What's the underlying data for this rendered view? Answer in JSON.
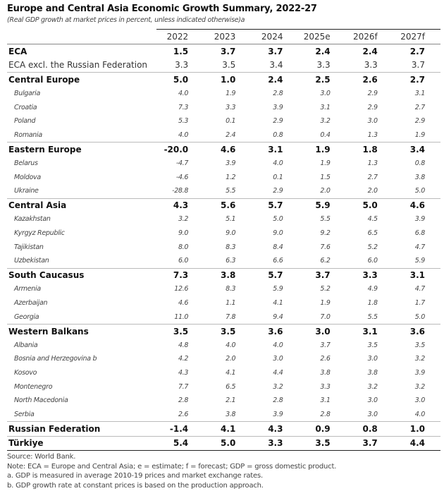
{
  "title": "Europe and Central Asia Economic Growth Summary, 2022-27",
  "subtitle": "(Real GDP growth at market prices in percent, unless indicated otherwise)a",
  "columns": [
    "2022",
    "2023",
    "2024",
    "2025e",
    "2026f",
    "2027f"
  ],
  "rows": [
    {
      "name": "ECA",
      "bold": true,
      "values": [
        "1.5",
        "3.7",
        "3.7",
        "2.4",
        "2.4",
        "2.7"
      ]
    },
    {
      "name": "ECA excl. the Russian Federation",
      "bold": false,
      "flat": true,
      "values": [
        "3.3",
        "3.5",
        "3.4",
        "3.3",
        "3.3",
        "3.7"
      ]
    },
    {
      "name": "Central Europe",
      "bold": true,
      "values": [
        "5.0",
        "1.0",
        "2.4",
        "2.5",
        "2.6",
        "2.7"
      ]
    },
    {
      "name": "Bulgaria",
      "values": [
        "4.0",
        "1.9",
        "2.8",
        "3.0",
        "2.9",
        "3.1"
      ]
    },
    {
      "name": "Croatia",
      "values": [
        "7.3",
        "3.3",
        "3.9",
        "3.1",
        "2.9",
        "2.7"
      ]
    },
    {
      "name": "Poland",
      "values": [
        "5.3",
        "0.1",
        "2.9",
        "3.2",
        "3.0",
        "2.9"
      ]
    },
    {
      "name": "Romania",
      "values": [
        "4.0",
        "2.4",
        "0.8",
        "0.4",
        "1.3",
        "1.9"
      ]
    },
    {
      "name": "Eastern Europe",
      "bold": true,
      "values": [
        "-20.0",
        "4.6",
        "3.1",
        "1.9",
        "1.8",
        "3.4"
      ]
    },
    {
      "name": "Belarus",
      "values": [
        "-4.7",
        "3.9",
        "4.0",
        "1.9",
        "1.3",
        "0.8"
      ]
    },
    {
      "name": "Moldova",
      "values": [
        "-4.6",
        "1.2",
        "0.1",
        "1.5",
        "2.7",
        "3.8"
      ]
    },
    {
      "name": "Ukraine",
      "values": [
        "-28.8",
        "5.5",
        "2.9",
        "2.0",
        "2.0",
        "5.0"
      ]
    },
    {
      "name": "Central Asia",
      "bold": true,
      "values": [
        "4.3",
        "5.6",
        "5.7",
        "5.9",
        "5.0",
        "4.6"
      ]
    },
    {
      "name": "Kazakhstan",
      "values": [
        "3.2",
        "5.1",
        "5.0",
        "5.5",
        "4.5",
        "3.9"
      ]
    },
    {
      "name": "Kyrgyz Republic",
      "values": [
        "9.0",
        "9.0",
        "9.0",
        "9.2",
        "6.5",
        "6.8"
      ]
    },
    {
      "name": "Tajikistan",
      "values": [
        "8.0",
        "8.3",
        "8.4",
        "7.6",
        "5.2",
        "4.7"
      ]
    },
    {
      "name": "Uzbekistan",
      "values": [
        "6.0",
        "6.3",
        "6.6",
        "6.2",
        "6.0",
        "5.9"
      ]
    },
    {
      "name": "South Caucasus",
      "bold": true,
      "values": [
        "7.3",
        "3.8",
        "5.7",
        "3.7",
        "3.3",
        "3.1"
      ]
    },
    {
      "name": "Armenia",
      "values": [
        "12.6",
        "8.3",
        "5.9",
        "5.2",
        "4.9",
        "4.7"
      ]
    },
    {
      "name": "Azerbaijan",
      "values": [
        "4.6",
        "1.1",
        "4.1",
        "1.9",
        "1.8",
        "1.7"
      ]
    },
    {
      "name": "Georgia",
      "values": [
        "11.0",
        "7.8",
        "9.4",
        "7.0",
        "5.5",
        "5.0"
      ]
    },
    {
      "name": "Western Balkans",
      "bold": true,
      "values": [
        "3.5",
        "3.5",
        "3.6",
        "3.0",
        "3.1",
        "3.6"
      ]
    },
    {
      "name": "Albania",
      "values": [
        "4.8",
        "4.0",
        "4.0",
        "3.7",
        "3.5",
        "3.5"
      ]
    },
    {
      "name": "Bosnia and Herzegovina b",
      "values": [
        "4.2",
        "2.0",
        "3.0",
        "2.6",
        "3.0",
        "3.2"
      ]
    },
    {
      "name": "Kosovo",
      "values": [
        "4.3",
        "4.1",
        "4.4",
        "3.8",
        "3.8",
        "3.9"
      ]
    },
    {
      "name": "Montenegro",
      "values": [
        "7.7",
        "6.5",
        "3.2",
        "3.3",
        "3.2",
        "3.2"
      ]
    },
    {
      "name": "North Macedonia",
      "values": [
        "2.8",
        "2.1",
        "2.8",
        "3.1",
        "3.0",
        "3.0"
      ]
    },
    {
      "name": "Serbia",
      "values": [
        "2.6",
        "3.8",
        "3.9",
        "2.8",
        "3.0",
        "4.0"
      ]
    },
    {
      "name": "Russian Federation",
      "bold": true,
      "values": [
        "-1.4",
        "4.1",
        "4.3",
        "0.9",
        "0.8",
        "1.0"
      ]
    },
    {
      "name": "Türkiye",
      "bold": true,
      "values": [
        "5.4",
        "5.0",
        "3.3",
        "3.5",
        "3.7",
        "4.4"
      ]
    }
  ],
  "notes": [
    "Source: World Bank.",
    "Note: ECA = Europe and Central Asia; e = estimate; f = forecast; GDP = gross domestic product.",
    "a. GDP is measured in average 2010-19 prices and market exchange rates.",
    "b. GDP growth rate at constant prices is based on the production approach."
  ]
}
